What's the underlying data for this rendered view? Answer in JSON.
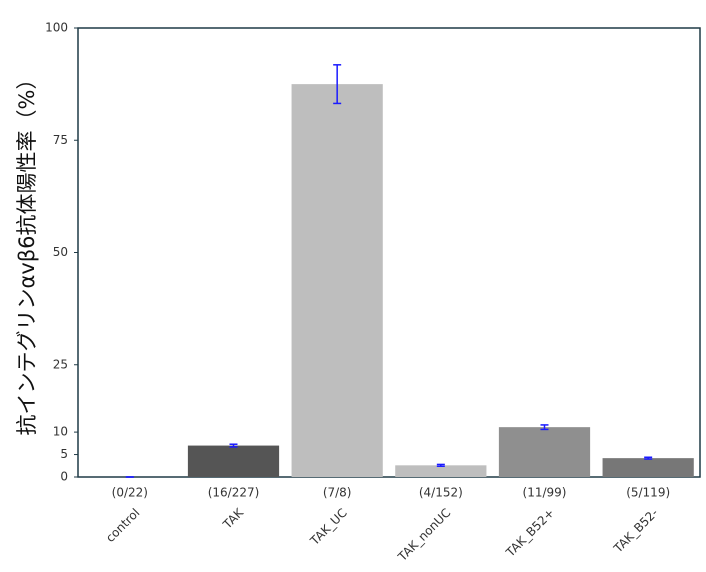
{
  "chart_data": {
    "type": "bar",
    "y_label": "抗インテグリンαvβ6抗体陽性率（%）",
    "categories": [
      "control",
      "TAK",
      "TAK_UC",
      "TAK_nonUC",
      "TAK_B52+",
      "TAK_B52-"
    ],
    "counts": [
      "(0/22)",
      "(16/227)",
      "(7/8)",
      "(4/152)",
      "(11/99)",
      "(5/119)"
    ],
    "values": [
      0,
      7.0,
      87.5,
      2.6,
      11.1,
      4.2
    ],
    "error": [
      0,
      0.3,
      4.3,
      0.2,
      0.5,
      0.2
    ],
    "colors": [
      "#bebebe",
      "#555555",
      "#bebebe",
      "#bebebe",
      "#8f8f8f",
      "#777777"
    ],
    "error_color": "#1a1aff",
    "ylim": [
      0,
      100
    ],
    "yticks": [
      0,
      5,
      10,
      25,
      50,
      75,
      100
    ],
    "grid": false
  }
}
